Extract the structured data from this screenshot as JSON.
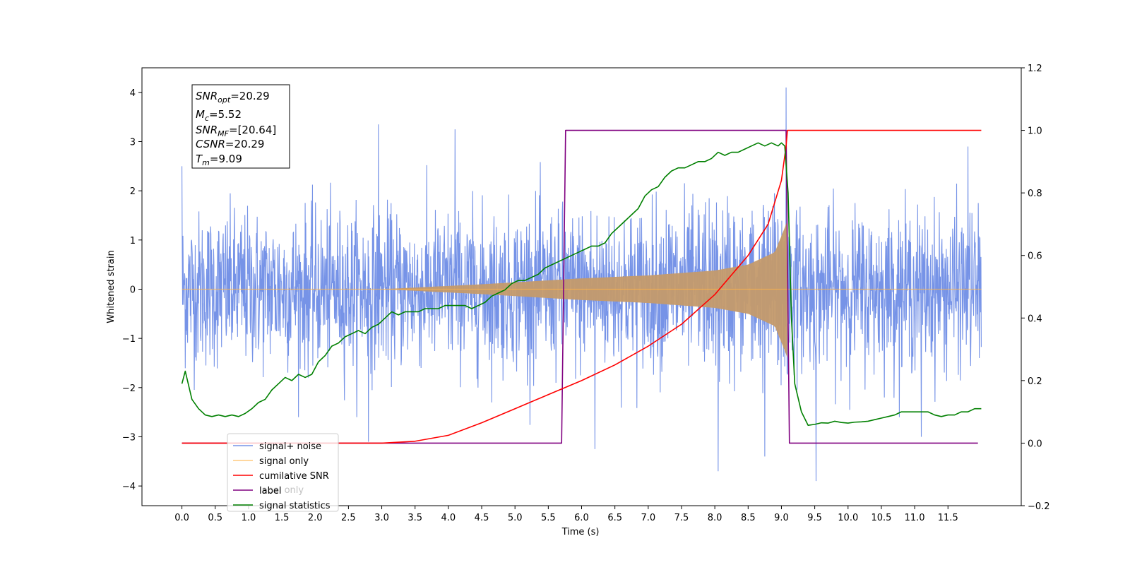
{
  "chart_data": {
    "type": "line",
    "title": "",
    "xlabel": "Time (s)",
    "ylabel": "Whitened strain",
    "y2label": "",
    "xlim": [
      -0.6,
      12.6
    ],
    "ylim": [
      -4.4,
      4.5
    ],
    "y2lim": [
      -0.2,
      1.2
    ],
    "x_ticks": [
      0.0,
      0.5,
      1.0,
      1.5,
      2.0,
      2.5,
      3.0,
      3.5,
      4.0,
      4.5,
      5.0,
      5.5,
      6.0,
      6.5,
      7.0,
      7.5,
      8.0,
      8.5,
      9.0,
      9.5,
      10.0,
      10.5,
      11.0,
      11.5
    ],
    "x_tick_labels": [
      "0.0",
      "0.5",
      "1.0",
      "1.5",
      "2.0",
      "2.5",
      "3.0",
      "3.5",
      "4.0",
      "4.5",
      "5.0",
      "5.5",
      "6.0",
      "6.5",
      "7.0",
      "7.5",
      "8.0",
      "8.5",
      "9.0",
      "9.5",
      "10.0",
      "10.5",
      "11.0",
      "11.5"
    ],
    "y_ticks": [
      -4,
      -3,
      -2,
      -1,
      0,
      1,
      2,
      3,
      4
    ],
    "y_tick_labels": [
      "−4",
      "−3",
      "−2",
      "−1",
      "0",
      "1",
      "2",
      "3",
      "4"
    ],
    "y2_ticks": [
      -0.2,
      0.0,
      0.2,
      0.4,
      0.6,
      0.8,
      1.0,
      1.2
    ],
    "y2_tick_labels": [
      "−0.2",
      "0.0",
      "0.2",
      "0.4",
      "0.6",
      "0.8",
      "1.0",
      "1.2"
    ],
    "grid": false,
    "legend_position": "lower-left",
    "annotations": {
      "snr_opt": {
        "base": "SNR",
        "sub": "opt",
        "value": "=20.29"
      },
      "mc": {
        "base": "M",
        "sub": "c",
        "value": "=5.52"
      },
      "snr_mf": {
        "base": "SNR",
        "sub": "MF",
        "value": "=[20.64]"
      },
      "csnr": {
        "base": "CSNR",
        "value": "=20.29"
      },
      "tm": {
        "base": "T",
        "sub": "m",
        "value": "=9.09"
      }
    },
    "series": [
      {
        "name": "signal+ noise",
        "color": "#6f8de6",
        "axis": "left",
        "kind": "noise",
        "x_range": [
          0.0,
          12.0
        ],
        "envelope_typical": 1.3,
        "notable_peaks": [
          {
            "x": 0.0,
            "y": 2.5
          },
          {
            "x": 2.95,
            "y": 3.35
          },
          {
            "x": 4.1,
            "y": 3.25
          },
          {
            "x": 9.07,
            "y": 4.1
          },
          {
            "x": 8.05,
            "y": -3.7
          },
          {
            "x": 9.52,
            "y": -3.9
          },
          {
            "x": 6.2,
            "y": -3.25
          },
          {
            "x": 8.75,
            "y": -3.4
          },
          {
            "x": 11.1,
            "y": -3.0
          },
          {
            "x": 2.8,
            "y": -3.1
          },
          {
            "x": 11.8,
            "y": 2.9
          }
        ]
      },
      {
        "name": "signal only",
        "color": "#ffb347",
        "axis": "left",
        "kind": "chirp",
        "start": 3.0,
        "end": 9.09,
        "amplitude_points": [
          [
            3.0,
            0.0
          ],
          [
            4.5,
            0.1
          ],
          [
            6.0,
            0.22
          ],
          [
            7.0,
            0.28
          ],
          [
            8.0,
            0.38
          ],
          [
            8.5,
            0.5
          ],
          [
            8.9,
            0.75
          ],
          [
            9.05,
            1.25
          ],
          [
            9.09,
            1.4
          ]
        ]
      },
      {
        "name": "cumilative SNR",
        "color": "#ff0000",
        "axis": "right",
        "x": [
          0.0,
          2.0,
          3.0,
          3.5,
          4.0,
          4.5,
          5.0,
          5.5,
          6.0,
          6.5,
          7.0,
          7.5,
          8.0,
          8.5,
          8.8,
          9.0,
          9.07,
          9.09,
          12.0
        ],
        "values": [
          0.0,
          0.0,
          0.0,
          0.006,
          0.025,
          0.065,
          0.11,
          0.155,
          0.2,
          0.25,
          0.31,
          0.38,
          0.475,
          0.6,
          0.7,
          0.84,
          0.95,
          1.0,
          1.0
        ]
      },
      {
        "name": "label",
        "color": "#800080",
        "axis": "right",
        "x": [
          0.0,
          5.7,
          5.76,
          9.07,
          9.12,
          11.95
        ],
        "values": [
          0.0,
          0.0,
          1.0,
          1.0,
          0.0,
          0.0
        ]
      },
      {
        "name": "label only",
        "color": "#800080",
        "axis": "right",
        "kind": "hidden-legend-entry"
      },
      {
        "name": "signal statistics",
        "color": "#008000",
        "axis": "right",
        "x": [
          0.0,
          0.05,
          0.15,
          0.25,
          0.35,
          0.45,
          0.55,
          0.65,
          0.75,
          0.85,
          0.95,
          1.05,
          1.15,
          1.25,
          1.35,
          1.45,
          1.55,
          1.65,
          1.75,
          1.85,
          1.95,
          2.05,
          2.15,
          2.25,
          2.35,
          2.45,
          2.55,
          2.65,
          2.75,
          2.85,
          2.95,
          3.05,
          3.15,
          3.25,
          3.35,
          3.45,
          3.55,
          3.65,
          3.75,
          3.85,
          3.95,
          4.05,
          4.15,
          4.25,
          4.35,
          4.45,
          4.55,
          4.65,
          4.75,
          4.85,
          4.95,
          5.05,
          5.15,
          5.25,
          5.35,
          5.45,
          5.55,
          5.65,
          5.75,
          5.85,
          5.95,
          6.05,
          6.15,
          6.25,
          6.35,
          6.45,
          6.55,
          6.65,
          6.75,
          6.85,
          6.95,
          7.05,
          7.15,
          7.25,
          7.35,
          7.45,
          7.55,
          7.65,
          7.75,
          7.85,
          7.95,
          8.05,
          8.15,
          8.25,
          8.35,
          8.45,
          8.55,
          8.65,
          8.75,
          8.85,
          8.95,
          9.0,
          9.05,
          9.1,
          9.15,
          9.2,
          9.3,
          9.4,
          9.5,
          9.6,
          9.7,
          9.8,
          9.9,
          10.0,
          10.1,
          10.2,
          10.3,
          10.4,
          10.5,
          10.6,
          10.7,
          10.8,
          10.9,
          11.0,
          11.1,
          11.2,
          11.3,
          11.4,
          11.5,
          11.6,
          11.7,
          11.8,
          11.9,
          12.0
        ],
        "values": [
          0.19,
          0.23,
          0.14,
          0.11,
          0.09,
          0.085,
          0.09,
          0.085,
          0.09,
          0.085,
          0.095,
          0.11,
          0.13,
          0.14,
          0.17,
          0.19,
          0.21,
          0.2,
          0.22,
          0.21,
          0.22,
          0.26,
          0.28,
          0.31,
          0.32,
          0.34,
          0.35,
          0.36,
          0.35,
          0.37,
          0.38,
          0.4,
          0.42,
          0.41,
          0.42,
          0.42,
          0.42,
          0.43,
          0.43,
          0.43,
          0.44,
          0.44,
          0.44,
          0.44,
          0.43,
          0.44,
          0.45,
          0.47,
          0.48,
          0.49,
          0.51,
          0.52,
          0.52,
          0.53,
          0.54,
          0.56,
          0.57,
          0.58,
          0.59,
          0.6,
          0.61,
          0.62,
          0.63,
          0.63,
          0.64,
          0.67,
          0.69,
          0.71,
          0.73,
          0.75,
          0.79,
          0.81,
          0.82,
          0.85,
          0.87,
          0.88,
          0.88,
          0.89,
          0.9,
          0.9,
          0.91,
          0.93,
          0.92,
          0.93,
          0.93,
          0.94,
          0.95,
          0.96,
          0.95,
          0.96,
          0.95,
          0.96,
          0.95,
          0.8,
          0.4,
          0.19,
          0.1,
          0.057,
          0.06,
          0.065,
          0.064,
          0.07,
          0.066,
          0.064,
          0.067,
          0.068,
          0.07,
          0.075,
          0.08,
          0.085,
          0.09,
          0.1,
          0.1,
          0.1,
          0.1,
          0.1,
          0.09,
          0.085,
          0.09,
          0.09,
          0.1,
          0.1,
          0.11,
          0.11
        ]
      }
    ]
  }
}
